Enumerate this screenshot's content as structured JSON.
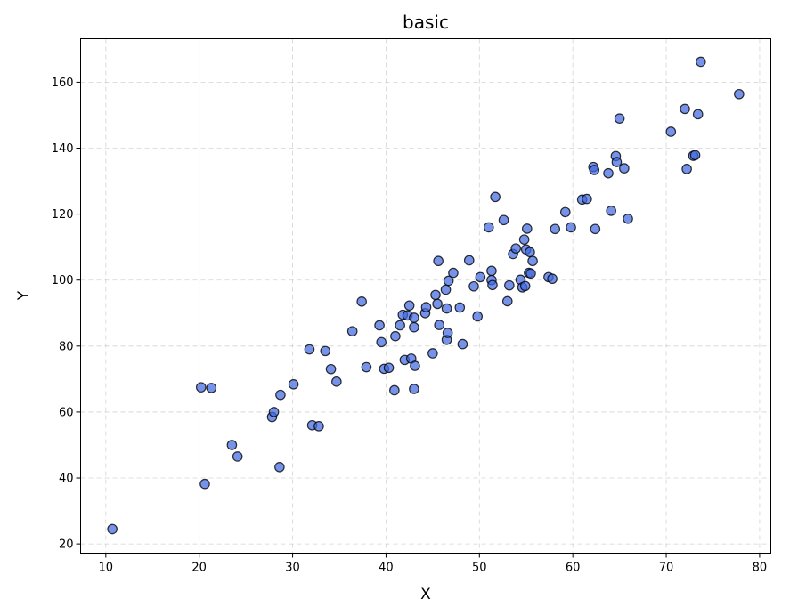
{
  "chart_data": {
    "type": "scatter",
    "title": "basic",
    "xlabel": "X",
    "ylabel": "Y",
    "xlim": [
      7.3,
      81.2
    ],
    "ylim": [
      17.2,
      173.2
    ],
    "xticks": [
      10,
      20,
      30,
      40,
      50,
      60,
      70,
      80
    ],
    "yticks": [
      20,
      40,
      60,
      80,
      100,
      120,
      140,
      160
    ],
    "grid": true,
    "colors": {
      "point_fill": "#4169e1",
      "point_edge": "#000000"
    },
    "series": [
      {
        "points": [
          [
            10.7,
            24.5
          ],
          [
            20.2,
            67.5
          ],
          [
            21.3,
            67.3
          ],
          [
            20.6,
            38.2
          ],
          [
            23.5,
            50.0
          ],
          [
            24.1,
            46.5
          ],
          [
            27.8,
            58.5
          ],
          [
            28.0,
            60.0
          ],
          [
            28.7,
            65.2
          ],
          [
            28.6,
            43.3
          ],
          [
            30.1,
            68.4
          ],
          [
            31.8,
            79.0
          ],
          [
            32.1,
            56.0
          ],
          [
            32.8,
            55.7
          ],
          [
            33.5,
            78.5
          ],
          [
            34.1,
            73.0
          ],
          [
            34.7,
            69.2
          ],
          [
            36.4,
            84.5
          ],
          [
            37.4,
            93.5
          ],
          [
            37.9,
            73.6
          ],
          [
            39.3,
            86.3
          ],
          [
            39.5,
            81.2
          ],
          [
            39.8,
            73.1
          ],
          [
            40.3,
            73.4
          ],
          [
            40.9,
            66.6
          ],
          [
            41.0,
            83.0
          ],
          [
            41.5,
            86.3
          ],
          [
            41.8,
            89.5
          ],
          [
            42.0,
            75.8
          ],
          [
            42.3,
            89.3
          ],
          [
            42.5,
            92.3
          ],
          [
            42.7,
            76.2
          ],
          [
            43.0,
            88.6
          ],
          [
            43.0,
            85.7
          ],
          [
            43.1,
            74.0
          ],
          [
            43.0,
            67.0
          ],
          [
            44.2,
            90.0
          ],
          [
            44.3,
            91.8
          ],
          [
            45.0,
            77.8
          ],
          [
            45.3,
            95.5
          ],
          [
            45.5,
            92.8
          ],
          [
            45.6,
            105.8
          ],
          [
            45.7,
            86.4
          ],
          [
            46.4,
            97.1
          ],
          [
            46.5,
            81.9
          ],
          [
            46.6,
            84.0
          ],
          [
            46.5,
            91.4
          ],
          [
            46.7,
            99.8
          ],
          [
            47.2,
            102.2
          ],
          [
            47.9,
            91.7
          ],
          [
            48.2,
            80.6
          ],
          [
            48.9,
            106.0
          ],
          [
            49.4,
            98.1
          ],
          [
            49.8,
            89.0
          ],
          [
            50.1,
            100.9
          ],
          [
            51.0,
            116.0
          ],
          [
            51.3,
            102.8
          ],
          [
            51.3,
            100.0
          ],
          [
            51.4,
            98.5
          ],
          [
            51.7,
            125.2
          ],
          [
            52.6,
            118.2
          ],
          [
            53.0,
            93.6
          ],
          [
            53.2,
            98.4
          ],
          [
            53.6,
            107.9
          ],
          [
            53.9,
            109.6
          ],
          [
            54.4,
            100.1
          ],
          [
            54.6,
            97.8
          ],
          [
            54.8,
            112.3
          ],
          [
            54.9,
            98.2
          ],
          [
            55.0,
            109.3
          ],
          [
            55.1,
            115.6
          ],
          [
            55.3,
            102.2
          ],
          [
            55.5,
            102.0
          ],
          [
            55.4,
            108.5
          ],
          [
            55.7,
            105.8
          ],
          [
            57.4,
            100.9
          ],
          [
            57.8,
            100.4
          ],
          [
            58.1,
            115.5
          ],
          [
            59.2,
            120.6
          ],
          [
            59.8,
            116.0
          ],
          [
            61.0,
            124.4
          ],
          [
            61.5,
            124.6
          ],
          [
            62.2,
            134.3
          ],
          [
            62.3,
            133.4
          ],
          [
            62.4,
            115.5
          ],
          [
            63.8,
            132.4
          ],
          [
            64.1,
            121.0
          ],
          [
            64.6,
            137.6
          ],
          [
            64.7,
            135.8
          ],
          [
            65.0,
            149.0
          ],
          [
            65.5,
            133.9
          ],
          [
            65.9,
            118.6
          ],
          [
            70.5,
            145.0
          ],
          [
            72.0,
            151.9
          ],
          [
            72.2,
            133.7
          ],
          [
            72.9,
            137.7
          ],
          [
            73.1,
            137.9
          ],
          [
            73.4,
            150.3
          ],
          [
            73.7,
            166.2
          ],
          [
            77.8,
            156.4
          ]
        ]
      }
    ]
  }
}
